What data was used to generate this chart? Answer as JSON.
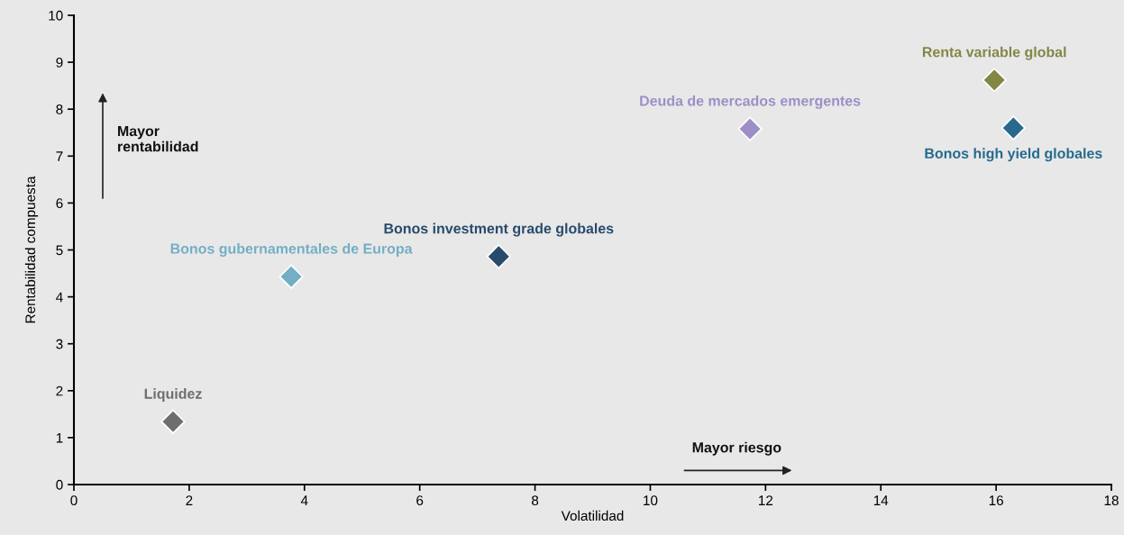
{
  "chart_data": {
    "type": "scatter",
    "xlabel": "Volatilidad",
    "ylabel": "Rentabilidad compuesta",
    "xlim": [
      0,
      18
    ],
    "ylim": [
      0,
      10
    ],
    "xticks": [
      0,
      2,
      4,
      6,
      8,
      10,
      12,
      14,
      16,
      18
    ],
    "yticks": [
      0,
      1,
      2,
      3,
      4,
      5,
      6,
      7,
      8,
      9,
      10
    ],
    "grid": false,
    "legend": false,
    "marker": "diamond",
    "annotations": [
      "Mayor\nrentabilidad",
      "Mayor riesgo"
    ],
    "series": [
      {
        "name": "Liquidez",
        "color": "#6d6e70",
        "x": [
          1.72
        ],
        "values": [
          1.34
        ]
      },
      {
        "name": "Bonos gubernamentales de Europa",
        "color": "#73aec5",
        "x": [
          3.77
        ],
        "values": [
          4.43
        ]
      },
      {
        "name": "Bonos investment grade globales",
        "color": "#284b6c",
        "x": [
          7.37
        ],
        "values": [
          4.86
        ]
      },
      {
        "name": "Deuda de mercados emergentes",
        "color": "#9d8fc6",
        "x": [
          11.73
        ],
        "values": [
          7.58
        ]
      },
      {
        "name": "Renta variable global",
        "color": "#838745",
        "x": [
          15.97
        ],
        "values": [
          8.62
        ]
      },
      {
        "name": "Bonos high yield globales",
        "color": "#266a8e",
        "x": [
          16.3
        ],
        "values": [
          7.6
        ]
      }
    ]
  }
}
